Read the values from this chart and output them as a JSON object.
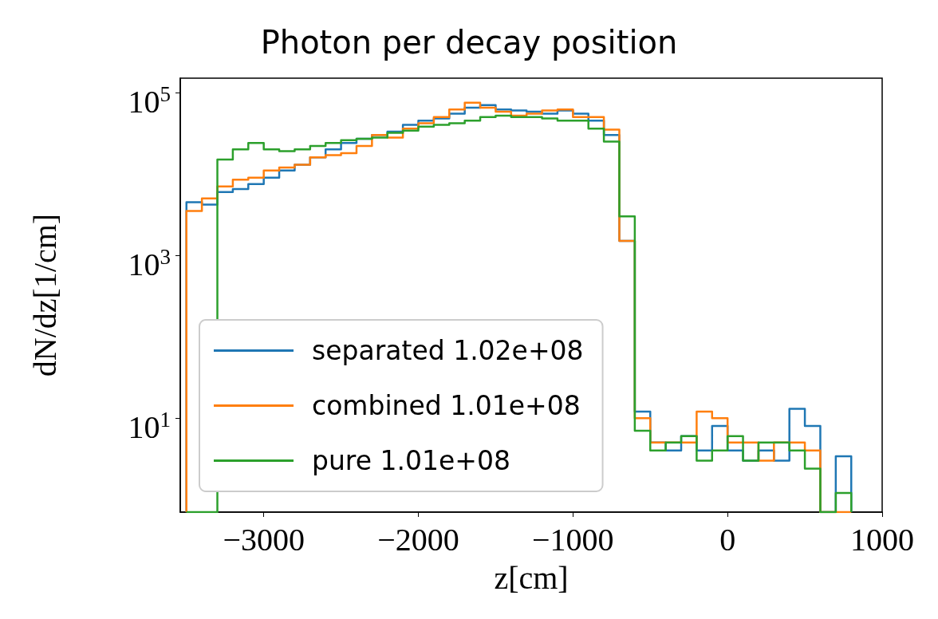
{
  "chart_data": {
    "type": "histogram",
    "title": "Photon per decay position",
    "xlabel": "z[cm]",
    "ylabel": "dN/dz[1/cm]",
    "bins": [
      -3500,
      -3400,
      -3300,
      -3200,
      -3100,
      -3000,
      -2900,
      -2800,
      -2700,
      -2600,
      -2500,
      -2400,
      -2300,
      -2200,
      -2100,
      -2000,
      -1900,
      -1800,
      -1700,
      -1600,
      -1500,
      -1400,
      -1300,
      -1200,
      -1100,
      -1000,
      -900,
      -800,
      -700,
      -600,
      -500,
      -400,
      -300,
      -200,
      -100,
      0,
      100,
      200,
      300,
      400,
      500,
      600,
      700,
      800
    ],
    "series": [
      {
        "name": "separated 1.02e+08",
        "color": "#1f77b4",
        "values": [
          4500,
          4200,
          6000,
          6500,
          7500,
          9000,
          11000,
          13000,
          16000,
          20000,
          24000,
          27000,
          30000,
          33000,
          40000,
          45000,
          48000,
          55000,
          65000,
          70000,
          62000,
          60000,
          58000,
          55000,
          60000,
          55000,
          45000,
          30000,
          1500,
          12,
          5,
          4,
          6,
          4,
          8,
          4,
          3,
          4,
          3,
          13,
          8,
          null,
          3.4
        ]
      },
      {
        "name": "combined 1.01e+08",
        "color": "#ff7f0e",
        "values": [
          3500,
          5000,
          7000,
          8500,
          9000,
          11000,
          12000,
          13000,
          16000,
          17000,
          18000,
          22000,
          30000,
          28000,
          36000,
          42000,
          50000,
          62000,
          75000,
          65000,
          58000,
          52000,
          55000,
          60000,
          62000,
          50000,
          50000,
          35000,
          1500,
          10,
          5,
          5,
          5,
          12,
          10,
          5,
          5,
          3,
          5,
          5,
          4,
          null,
          null
        ]
      },
      {
        "name": "pure 1.01e+08",
        "color": "#2ca02c",
        "values": [
          null,
          null,
          15000,
          20000,
          24000,
          20000,
          19000,
          20000,
          22000,
          24000,
          26000,
          27000,
          28000,
          32000,
          34000,
          38000,
          40000,
          42000,
          45000,
          50000,
          52000,
          50000,
          50000,
          48000,
          45000,
          45000,
          36000,
          25000,
          3000,
          7,
          4,
          5,
          6,
          3,
          4,
          6,
          3,
          5,
          5,
          4,
          2.4,
          null,
          1.2
        ]
      }
    ],
    "log": "y",
    "xlim": [
      -3540,
      1000
    ],
    "xticks": [
      {
        "value": -3000,
        "label": "−3000"
      },
      {
        "value": -2000,
        "label": "−2000"
      },
      {
        "value": -1000,
        "label": "−1000"
      },
      0,
      1000
    ],
    "ylim": [
      0.7,
      150000
    ],
    "yticks": [
      {
        "value": 10,
        "label": "10$^{1}$"
      },
      {
        "value": 1000,
        "label": "10$^{3}$"
      },
      {
        "value": 100000,
        "label": "10$^{5}$"
      }
    ],
    "grid": false,
    "legend": "lower left"
  }
}
